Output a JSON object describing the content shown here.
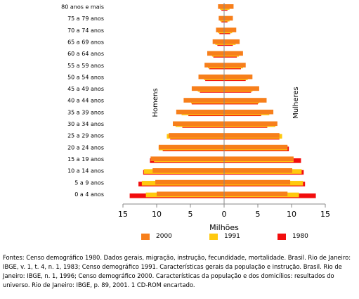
{
  "chart_data": {
    "type": "bar",
    "subtype": "population-pyramid",
    "categories": [
      "80 anos e mais",
      "75 a 79 anos",
      "70 a 74 anos",
      "65 a 69 anos",
      "60 a 64 anos",
      "55 a 59 anos",
      "50 a 54 anos",
      "45 a 49 anos",
      "40 a 44 anos",
      "35 a 39 anos",
      "30 a 34 anos",
      "25 a 29 anos",
      "20 a 24 anos",
      "15 a 19 anos",
      "10 a 14 anos",
      "5 a 9 anos",
      "0 a 4 anos"
    ],
    "left_label": "Homens",
    "right_label": "Mulheres",
    "xlabel": "Milhões",
    "x_ticks": [
      "15",
      "10",
      "5",
      "0",
      "5",
      "10",
      "15"
    ],
    "xlim": [
      -15,
      15
    ],
    "series": [
      {
        "name": "2000",
        "color": "#f77f1b",
        "men": [
          0.9,
          0.8,
          1.2,
          1.7,
          2.5,
          2.9,
          3.8,
          4.8,
          6.0,
          7.1,
          7.6,
          8.2,
          9.7,
          10.9,
          10.6,
          10.2,
          10.0
        ],
        "women": [
          1.4,
          1.3,
          1.8,
          2.3,
          2.8,
          3.2,
          4.2,
          5.2,
          6.3,
          7.3,
          7.9,
          8.2,
          9.4,
          10.3,
          10.1,
          9.8,
          9.4
        ]
      },
      {
        "name": "1991",
        "color": "#ffc90e",
        "men": [
          0.6,
          0.6,
          0.9,
          1.3,
          1.8,
          2.4,
          3.0,
          3.9,
          4.9,
          6.3,
          7.2,
          8.5,
          9.7,
          10.4,
          11.9,
          12.2,
          11.6
        ],
        "women": [
          0.8,
          0.8,
          1.2,
          1.7,
          2.2,
          2.8,
          3.5,
          4.2,
          5.2,
          6.7,
          7.6,
          8.6,
          9.4,
          10.3,
          11.5,
          11.7,
          11.1
        ]
      },
      {
        "name": "1980",
        "color": "#f20d0d",
        "men": [
          0.4,
          0.4,
          0.7,
          1.0,
          1.6,
          2.2,
          2.8,
          3.6,
          4.8,
          5.3,
          6.2,
          8.0,
          9.1,
          11.0,
          12.0,
          12.7,
          14.0
        ],
        "women": [
          0.5,
          0.5,
          0.9,
          1.3,
          1.9,
          2.5,
          3.2,
          4.0,
          5.0,
          5.5,
          6.4,
          8.2,
          9.6,
          11.4,
          11.8,
          12.0,
          13.6
        ]
      }
    ],
    "legend_position": "bottom"
  },
  "source_text": "Fontes: Censo demográfico 1980. Dados gerais, migração, instrução, fecundidade, mortalidade. Brasil. Rio de Janeiro: IBGE, v. 1, t. 4, n. 1, 1983; Censo demográfico 1991. Características gerais da população e instrução. Brasil. Rio de Janeiro: IBGE, n. 1, 1996; Censo demográfico 2000. Características da população e dos domicílios: resultados do universo. Rio de Janeiro: IBGE, p. 89, 2001. 1 CD-ROM encartado."
}
